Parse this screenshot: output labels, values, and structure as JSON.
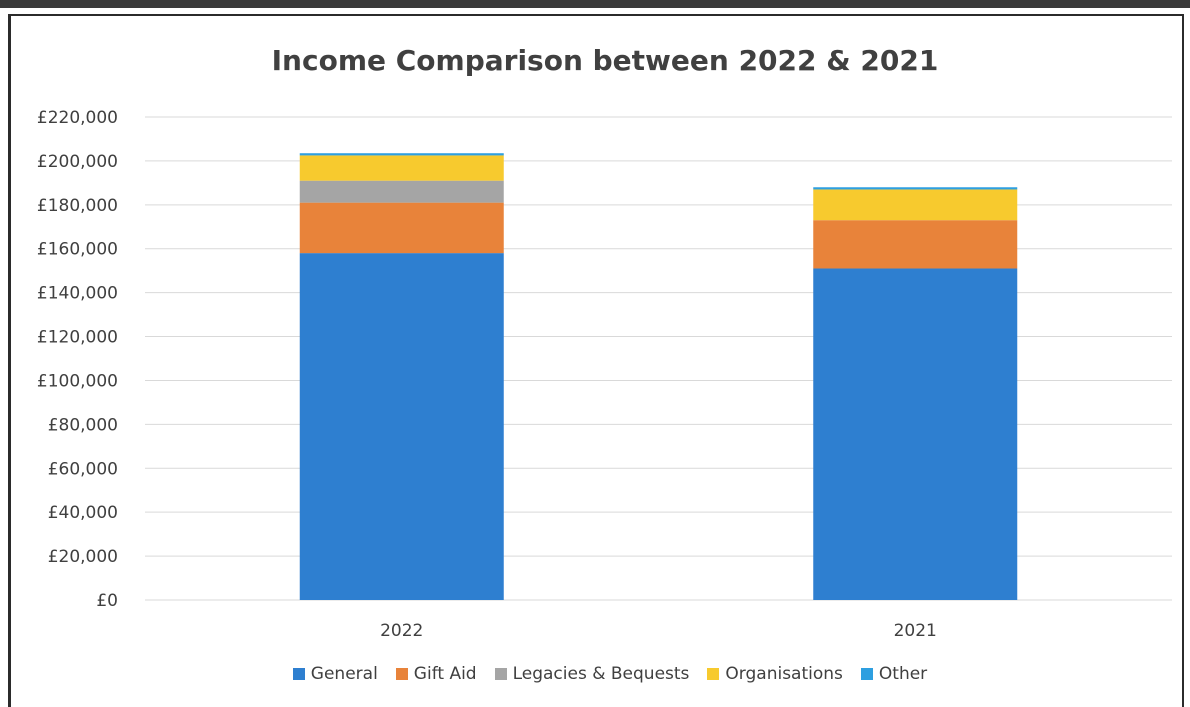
{
  "chart_data": {
    "type": "bar",
    "stacked": true,
    "title": "Income Comparison between 2022 & 2021",
    "xlabel": "",
    "ylabel": "",
    "categories": [
      "2022",
      "2021"
    ],
    "ylim": [
      0,
      220000
    ],
    "yticks": [
      0,
      20000,
      40000,
      60000,
      80000,
      100000,
      120000,
      140000,
      160000,
      180000,
      200000,
      220000
    ],
    "ytick_labels": [
      "£0",
      "£20,000",
      "£40,000",
      "£60,000",
      "£80,000",
      "£100,000",
      "£120,000",
      "£140,000",
      "£160,000",
      "£180,000",
      "£200,000",
      "£220,000"
    ],
    "grid": true,
    "legend_position": "bottom",
    "series": [
      {
        "name": "General",
        "color": "#2E7FD0",
        "values": [
          158000,
          151000
        ]
      },
      {
        "name": "Gift Aid",
        "color": "#E8833A",
        "values": [
          23000,
          22000
        ]
      },
      {
        "name": "Legacies & Bequests",
        "color": "#A5A5A5",
        "values": [
          10000,
          0
        ]
      },
      {
        "name": "Organisations",
        "color": "#F7CA2E",
        "values": [
          11500,
          14000
        ]
      },
      {
        "name": "Other",
        "color": "#2E9FE0",
        "values": [
          1000,
          1000
        ]
      }
    ]
  }
}
